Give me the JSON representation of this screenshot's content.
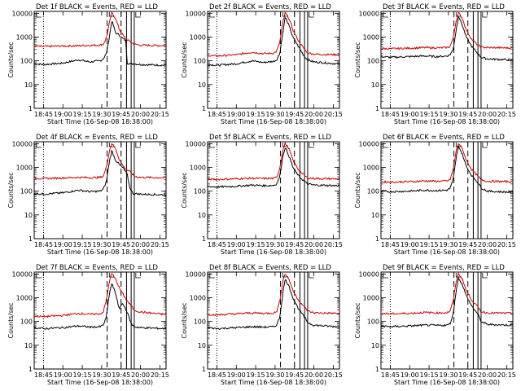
{
  "chart_data": [
    {
      "type": "line",
      "title": "Det 1f BLACK = Events, RED = LLD",
      "xlabel": "Start Time (16-Sep-08 18:38:00)",
      "ylabel": "Counts/sec",
      "x_ticks": [
        "18:45",
        "19:00",
        "19:15",
        "19:30",
        "19:45",
        "20:00",
        "20:15"
      ],
      "y_ticks": [
        "1",
        "10",
        "100",
        "1000",
        "10000"
      ],
      "ylim": [
        1,
        12000
      ],
      "y_scale": "log",
      "series": [
        {
          "color": "#000000",
          "x": [
            18.63,
            18.75,
            19.0,
            19.2,
            19.35,
            19.48,
            19.52,
            19.56,
            19.6,
            19.63,
            19.68,
            19.73,
            19.75,
            19.81,
            19.83,
            19.88,
            19.92,
            20.0,
            20.3
          ],
          "y": [
            75,
            70,
            80,
            110,
            90,
            100,
            120,
            200,
            1000,
            5000,
            1500,
            1200,
            1000,
            700,
            80,
            75,
            75,
            70,
            65
          ]
        },
        {
          "color": "#cc0000",
          "x": [
            18.63,
            18.75,
            19.0,
            19.2,
            19.35,
            19.48,
            19.52,
            19.56,
            19.6,
            19.63,
            19.68,
            19.73,
            19.8,
            19.88,
            19.92,
            20.0,
            20.3
          ],
          "y": [
            420,
            400,
            420,
            430,
            450,
            460,
            500,
            900,
            4000,
            10500,
            6000,
            2000,
            900,
            600,
            500,
            450,
            440
          ]
        }
      ],
      "markers_dashed": [
        19.57,
        19.75
      ],
      "markers_solid": [
        19.82,
        19.88,
        19.92
      ],
      "marker_dotted": 18.75
    },
    {
      "type": "line",
      "title": "Det 2f BLACK = Events, RED = LLD",
      "xlabel": "Start Time (16-Sep-08 18:38:00)",
      "ylabel": "Counts/sec",
      "x_ticks": [
        "18:45",
        "19:00",
        "19:15",
        "19:30",
        "19:45",
        "20:00",
        "20:15"
      ],
      "y_ticks": [
        "1",
        "10",
        "100",
        "1000",
        "10000"
      ],
      "ylim": [
        1,
        12000
      ],
      "y_scale": "log",
      "series": [
        {
          "color": "#000000",
          "x": [
            18.63,
            18.75,
            19.0,
            19.2,
            19.35,
            19.48,
            19.52,
            19.56,
            19.6,
            19.63,
            19.68,
            19.73,
            19.8,
            19.88,
            19.92,
            20.0,
            20.3
          ],
          "y": [
            70,
            65,
            75,
            100,
            85,
            95,
            110,
            200,
            1500,
            7000,
            3000,
            1000,
            400,
            150,
            110,
            90,
            75
          ]
        },
        {
          "color": "#cc0000",
          "x": [
            18.63,
            18.75,
            19.0,
            19.2,
            19.35,
            19.48,
            19.52,
            19.56,
            19.6,
            19.63,
            19.68,
            19.73,
            19.8,
            19.88,
            19.92,
            20.0,
            20.3
          ],
          "y": [
            170,
            160,
            180,
            230,
            200,
            210,
            250,
            600,
            4000,
            10500,
            6000,
            2000,
            700,
            300,
            220,
            190,
            180
          ]
        }
      ],
      "markers_dashed": [
        19.57,
        19.75
      ],
      "markers_solid": [
        19.82,
        19.88,
        19.92
      ],
      "marker_dotted": 18.75
    },
    {
      "type": "line",
      "title": "Det 3f BLACK = Events, RED = LLD",
      "xlabel": "Start Time (16-Sep-08 18:38:00)",
      "ylabel": "Counts/sec",
      "x_ticks": [
        "18:45",
        "19:00",
        "19:15",
        "19:30",
        "19:45",
        "20:00",
        "20:15"
      ],
      "y_ticks": [
        "1",
        "10",
        "100",
        "1000",
        "10000"
      ],
      "ylim": [
        1,
        12000
      ],
      "y_scale": "log",
      "series": [
        {
          "color": "#000000",
          "x": [
            18.63,
            18.75,
            19.0,
            19.2,
            19.35,
            19.48,
            19.52,
            19.56,
            19.6,
            19.63,
            19.68,
            19.73,
            19.8,
            19.88,
            19.92,
            20.0,
            20.3
          ],
          "y": [
            150,
            140,
            150,
            160,
            150,
            160,
            180,
            300,
            2000,
            8000,
            3000,
            1000,
            400,
            200,
            140,
            120,
            110
          ]
        },
        {
          "color": "#cc0000",
          "x": [
            18.63,
            18.75,
            19.0,
            19.2,
            19.35,
            19.48,
            19.52,
            19.56,
            19.6,
            19.63,
            19.68,
            19.73,
            19.8,
            19.88,
            19.92,
            20.0,
            20.3
          ],
          "y": [
            330,
            320,
            340,
            360,
            350,
            360,
            400,
            900,
            5000,
            10500,
            6000,
            2000,
            800,
            450,
            380,
            360,
            350
          ]
        }
      ],
      "markers_dashed": [
        19.57,
        19.75
      ],
      "markers_solid": [
        19.82,
        19.88,
        19.92
      ],
      "marker_dotted": 18.75
    },
    {
      "type": "line",
      "title": "Det 4f BLACK = Events, RED = LLD",
      "xlabel": "Start Time (16-Sep-08 18:38:00)",
      "ylabel": "Counts/sec",
      "x_ticks": [
        "18:45",
        "19:00",
        "19:15",
        "19:30",
        "19:45",
        "20:00",
        "20:15"
      ],
      "y_ticks": [
        "1",
        "10",
        "100",
        "1000",
        "10000"
      ],
      "ylim": [
        1,
        12000
      ],
      "y_scale": "log",
      "series": [
        {
          "color": "#000000",
          "x": [
            18.63,
            18.75,
            19.0,
            19.2,
            19.35,
            19.48,
            19.52,
            19.56,
            19.6,
            19.63,
            19.68,
            19.73,
            19.78,
            19.83,
            19.86,
            19.9,
            20.0,
            20.3
          ],
          "y": [
            80,
            75,
            85,
            110,
            95,
            100,
            120,
            250,
            1800,
            5000,
            2000,
            1300,
            900,
            500,
            150,
            80,
            75,
            70
          ]
        },
        {
          "color": "#cc0000",
          "x": [
            18.63,
            18.75,
            19.0,
            19.2,
            19.35,
            19.48,
            19.52,
            19.56,
            19.6,
            19.63,
            19.68,
            19.73,
            19.8,
            19.88,
            19.92,
            20.0,
            20.3
          ],
          "y": [
            350,
            340,
            360,
            380,
            370,
            380,
            420,
            1000,
            5000,
            10500,
            6000,
            2000,
            900,
            600,
            420,
            380,
            370
          ]
        }
      ],
      "markers_dashed": [
        19.57,
        19.75
      ],
      "markers_solid": [
        19.82,
        19.88,
        19.92
      ],
      "marker_dotted": 18.75
    },
    {
      "type": "line",
      "title": "Det 5f BLACK = Events, RED = LLD",
      "xlabel": "Start Time (16-Sep-08 18:38:00)",
      "ylabel": "Counts/sec",
      "x_ticks": [
        "18:45",
        "19:00",
        "19:15",
        "19:30",
        "19:45",
        "20:00",
        "20:15"
      ],
      "y_ticks": [
        "1",
        "10",
        "100",
        "1000",
        "10000"
      ],
      "ylim": [
        1,
        12000
      ],
      "y_scale": "log",
      "series": [
        {
          "color": "#000000",
          "x": [
            18.63,
            18.75,
            19.0,
            19.2,
            19.35,
            19.48,
            19.52,
            19.56,
            19.6,
            19.63,
            19.68,
            19.73,
            19.8,
            19.88,
            19.92,
            20.0,
            20.3
          ],
          "y": [
            160,
            150,
            160,
            180,
            170,
            175,
            200,
            400,
            3000,
            7000,
            3000,
            1000,
            450,
            250,
            200,
            180,
            170
          ]
        },
        {
          "color": "#cc0000",
          "x": [
            18.63,
            18.75,
            19.0,
            19.2,
            19.35,
            19.48,
            19.52,
            19.56,
            19.6,
            19.63,
            19.68,
            19.73,
            19.8,
            19.88,
            19.92,
            20.0,
            20.3
          ],
          "y": [
            320,
            310,
            330,
            350,
            340,
            345,
            380,
            900,
            5000,
            10500,
            6000,
            2000,
            800,
            450,
            360,
            340,
            330
          ]
        }
      ],
      "markers_dashed": [
        19.57,
        19.75
      ],
      "markers_solid": [
        19.82,
        19.88,
        19.92
      ],
      "marker_dotted": 18.75
    },
    {
      "type": "line",
      "title": "Det 6f BLACK = Events, RED = LLD",
      "xlabel": "Start Time (16-Sep-08 18:38:00)",
      "ylabel": "Counts/sec",
      "x_ticks": [
        "18:45",
        "19:00",
        "19:15",
        "19:30",
        "19:45",
        "20:00",
        "20:15"
      ],
      "y_ticks": [
        "1",
        "10",
        "100",
        "1000",
        "10000"
      ],
      "ylim": [
        1,
        12000
      ],
      "y_scale": "log",
      "series": [
        {
          "color": "#000000",
          "x": [
            18.63,
            18.75,
            19.0,
            19.2,
            19.35,
            19.48,
            19.52,
            19.56,
            19.6,
            19.63,
            19.68,
            19.73,
            19.8,
            19.88,
            19.92,
            20.0,
            20.3
          ],
          "y": [
            100,
            95,
            100,
            110,
            105,
            110,
            130,
            300,
            2500,
            8000,
            3500,
            1100,
            450,
            230,
            140,
            100,
            90
          ]
        },
        {
          "color": "#cc0000",
          "x": [
            18.63,
            18.75,
            19.0,
            19.2,
            19.35,
            19.48,
            19.52,
            19.56,
            19.6,
            19.63,
            19.68,
            19.73,
            19.8,
            19.88,
            19.92,
            20.0,
            20.3
          ],
          "y": [
            250,
            240,
            250,
            270,
            260,
            265,
            300,
            800,
            5000,
            10500,
            6000,
            2000,
            800,
            420,
            300,
            260,
            250
          ]
        }
      ],
      "markers_dashed": [
        19.57,
        19.75
      ],
      "markers_solid": [
        19.82,
        19.88,
        19.92
      ],
      "marker_dotted": 18.75
    },
    {
      "type": "line",
      "title": "Det 7f BLACK = Events, RED = LLD",
      "xlabel": "Start Time (16-Sep-08 18:38:00)",
      "ylabel": "Counts/sec",
      "x_ticks": [
        "18:45",
        "19:00",
        "19:15",
        "19:30",
        "19:45",
        "20:00",
        "20:15"
      ],
      "y_ticks": [
        "1",
        "10",
        "100",
        "1000",
        "10000"
      ],
      "ylim": [
        1,
        12000
      ],
      "y_scale": "log",
      "series": [
        {
          "color": "#000000",
          "x": [
            18.63,
            18.75,
            19.0,
            19.2,
            19.35,
            19.48,
            19.52,
            19.56,
            19.6,
            19.63,
            19.68,
            19.73,
            19.76,
            19.8,
            19.84,
            19.88,
            19.92,
            20.0,
            20.3
          ],
          "y": [
            55,
            50,
            55,
            65,
            58,
            60,
            70,
            150,
            1500,
            4000,
            1500,
            300,
            600,
            400,
            200,
            80,
            60,
            55,
            50
          ]
        },
        {
          "color": "#cc0000",
          "x": [
            18.63,
            18.75,
            19.0,
            19.2,
            19.35,
            19.48,
            19.52,
            19.56,
            19.6,
            19.63,
            19.68,
            19.73,
            19.8,
            19.88,
            19.92,
            20.0,
            20.3
          ],
          "y": [
            170,
            160,
            180,
            220,
            200,
            210,
            250,
            800,
            5000,
            10500,
            6000,
            2500,
            1000,
            450,
            300,
            250,
            200
          ]
        }
      ],
      "markers_dashed": [
        19.57,
        19.75
      ],
      "markers_solid": [
        19.82,
        19.88,
        19.92
      ],
      "marker_dotted": 18.75
    },
    {
      "type": "line",
      "title": "Det 8f BLACK = Events, RED = LLD",
      "xlabel": "Start Time (16-Sep-08 18:38:00)",
      "ylabel": "Counts/sec",
      "x_ticks": [
        "18:45",
        "19:00",
        "19:15",
        "19:30",
        "19:45",
        "20:00",
        "20:15"
      ],
      "y_ticks": [
        "1",
        "10",
        "100",
        "1000",
        "10000"
      ],
      "ylim": [
        1,
        12000
      ],
      "y_scale": "log",
      "series": [
        {
          "color": "#000000",
          "x": [
            18.63,
            18.75,
            19.0,
            19.2,
            19.35,
            19.48,
            19.52,
            19.56,
            19.6,
            19.63,
            19.68,
            19.73,
            19.8,
            19.88,
            19.92,
            20.0,
            20.3
          ],
          "y": [
            55,
            50,
            55,
            60,
            58,
            60,
            70,
            150,
            1500,
            6000,
            3000,
            1000,
            350,
            150,
            90,
            70,
            60
          ]
        },
        {
          "color": "#cc0000",
          "x": [
            18.63,
            18.75,
            19.0,
            19.2,
            19.35,
            19.48,
            19.52,
            19.56,
            19.6,
            19.63,
            19.68,
            19.73,
            19.8,
            19.88,
            19.92,
            20.0,
            20.3
          ],
          "y": [
            200,
            190,
            210,
            230,
            220,
            225,
            260,
            700,
            5000,
            10500,
            6000,
            2000,
            800,
            400,
            280,
            230,
            220
          ]
        }
      ],
      "markers_dashed": [
        19.57,
        19.75
      ],
      "markers_solid": [
        19.82,
        19.88,
        19.92
      ],
      "marker_dotted": 18.75
    },
    {
      "type": "line",
      "title": "Det 9f BLACK = Events, RED = LLD",
      "xlabel": "Start Time (16-Sep-08 18:38:00)",
      "ylabel": "Counts/sec",
      "x_ticks": [
        "18:45",
        "19:00",
        "19:15",
        "19:30",
        "19:45",
        "20:00",
        "20:15"
      ],
      "y_ticks": [
        "1",
        "10",
        "100",
        "1000",
        "10000"
      ],
      "ylim": [
        1,
        12000
      ],
      "y_scale": "log",
      "series": [
        {
          "color": "#000000",
          "x": [
            18.63,
            18.75,
            19.0,
            19.2,
            19.35,
            19.48,
            19.52,
            19.56,
            19.6,
            19.63,
            19.68,
            19.73,
            19.8,
            19.88,
            19.92,
            20.0,
            20.3
          ],
          "y": [
            65,
            60,
            65,
            70,
            68,
            70,
            80,
            200,
            2000,
            7000,
            3500,
            1200,
            450,
            200,
            100,
            75,
            70
          ]
        },
        {
          "color": "#cc0000",
          "x": [
            18.63,
            18.75,
            19.0,
            19.2,
            19.35,
            19.48,
            19.52,
            19.56,
            19.6,
            19.63,
            19.68,
            19.73,
            19.8,
            19.88,
            19.92,
            20.0,
            20.3
          ],
          "y": [
            220,
            210,
            220,
            240,
            230,
            235,
            270,
            700,
            5000,
            10500,
            6000,
            2000,
            800,
            400,
            260,
            230,
            220
          ]
        }
      ],
      "markers_dashed": [
        19.57,
        19.75
      ],
      "markers_solid": [
        19.82,
        19.88,
        19.92
      ],
      "marker_dotted": 18.75
    }
  ]
}
